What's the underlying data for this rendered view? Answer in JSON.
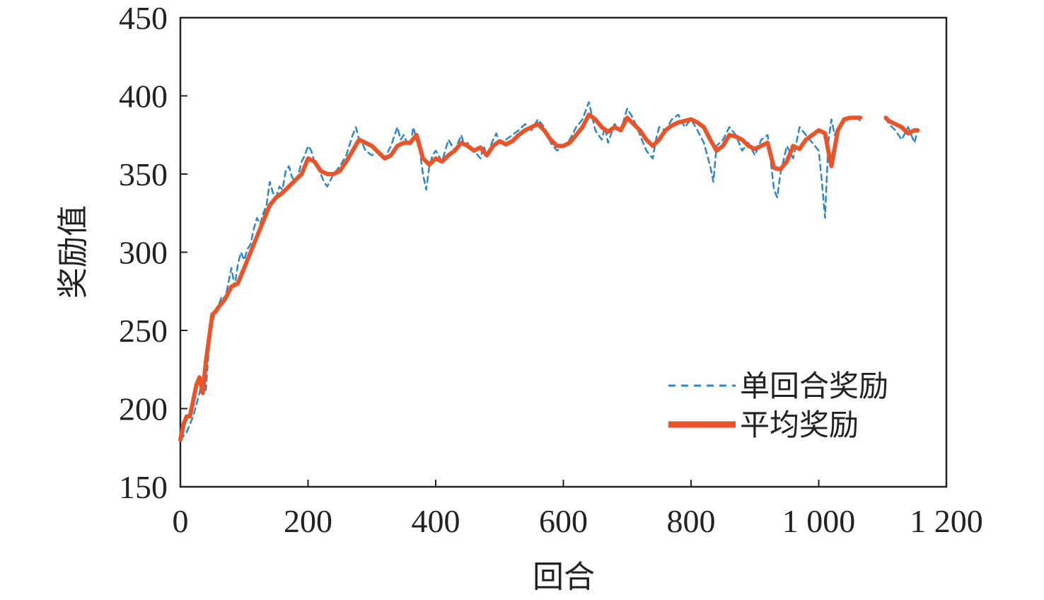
{
  "chart_data": {
    "type": "line",
    "title": "",
    "xlabel": "回合",
    "ylabel": "奖励值",
    "xlim": [
      0,
      1200
    ],
    "ylim": [
      150,
      450
    ],
    "xticks": [
      0,
      200,
      400,
      600,
      800,
      1000,
      1200
    ],
    "xtick_labels": [
      "0",
      "200",
      "400",
      "600",
      "800",
      "1 000",
      "1 200"
    ],
    "yticks": [
      150,
      200,
      250,
      300,
      350,
      400,
      450
    ],
    "ytick_labels": [
      "150",
      "200",
      "250",
      "300",
      "350",
      "400",
      "450"
    ],
    "grid": false,
    "legend_position": "bottom-right",
    "colors": {
      "single": "#2f86c8",
      "average": "#e8552a",
      "axis": "#222222"
    },
    "series": [
      {
        "name": "单回合奖励",
        "style": "dashed",
        "x": [
          0,
          10,
          20,
          30,
          35,
          40,
          45,
          50,
          55,
          60,
          65,
          70,
          75,
          80,
          85,
          90,
          95,
          100,
          105,
          110,
          115,
          120,
          125,
          130,
          135,
          140,
          145,
          150,
          155,
          160,
          165,
          170,
          175,
          180,
          185,
          190,
          195,
          200,
          205,
          210,
          215,
          220,
          225,
          230,
          240,
          250,
          260,
          270,
          275,
          280,
          285,
          290,
          300,
          310,
          320,
          330,
          340,
          345,
          350,
          355,
          360,
          365,
          370,
          375,
          380,
          385,
          390,
          395,
          400,
          410,
          420,
          430,
          440,
          445,
          450,
          460,
          470,
          475,
          480,
          490,
          495,
          500,
          510,
          520,
          530,
          540,
          550,
          560,
          570,
          580,
          590,
          600,
          610,
          620,
          630,
          640,
          650,
          660,
          665,
          670,
          680,
          690,
          700,
          710,
          720,
          730,
          740,
          745,
          750,
          760,
          770,
          780,
          790,
          800,
          810,
          820,
          830,
          835,
          840,
          850,
          860,
          870,
          880,
          890,
          900,
          910,
          920,
          930,
          935,
          940,
          950,
          960,
          970,
          980,
          990,
          1000,
          1005,
          1010,
          1015,
          1020,
          1025,
          1030,
          1040,
          1050,
          1060,
          1065,
          1105,
          1110,
          1120,
          1130,
          1140,
          1150,
          1155
        ],
        "y": [
          180,
          185,
          195,
          210,
          220,
          212,
          240,
          255,
          262,
          266,
          272,
          270,
          280,
          290,
          278,
          292,
          300,
          295,
          302,
          305,
          315,
          322,
          318,
          325,
          330,
          345,
          338,
          335,
          342,
          340,
          352,
          355,
          348,
          345,
          350,
          358,
          362,
          368,
          365,
          358,
          354,
          350,
          345,
          342,
          350,
          355,
          362,
          375,
          380,
          372,
          370,
          365,
          362,
          365,
          360,
          368,
          380,
          372,
          375,
          370,
          368,
          380,
          372,
          365,
          350,
          340,
          355,
          362,
          365,
          358,
          372,
          365,
          375,
          368,
          370,
          365,
          360,
          368,
          362,
          372,
          376,
          370,
          372,
          375,
          378,
          382,
          378,
          385,
          380,
          370,
          365,
          368,
          372,
          380,
          385,
          396,
          378,
          372,
          380,
          370,
          382,
          378,
          392,
          385,
          375,
          365,
          360,
          372,
          380,
          378,
          385,
          388,
          380,
          385,
          378,
          370,
          355,
          345,
          368,
          372,
          380,
          375,
          365,
          370,
          362,
          372,
          375,
          340,
          335,
          350,
          368,
          360,
          380,
          375,
          370,
          365,
          345,
          322,
          370,
          385,
          375,
          380,
          385,
          386,
          386,
          384,
          386,
          382,
          378,
          372,
          380,
          370,
          378
        ]
      },
      {
        "name": "平均奖励",
        "style": "solid",
        "x": [
          0,
          5,
          10,
          15,
          20,
          25,
          30,
          35,
          40,
          45,
          50,
          55,
          60,
          70,
          80,
          90,
          100,
          110,
          120,
          130,
          140,
          150,
          160,
          170,
          180,
          190,
          200,
          210,
          220,
          230,
          240,
          250,
          260,
          270,
          280,
          290,
          300,
          310,
          320,
          330,
          340,
          350,
          360,
          370,
          380,
          390,
          400,
          410,
          420,
          430,
          440,
          450,
          460,
          470,
          480,
          490,
          500,
          510,
          520,
          530,
          540,
          550,
          560,
          570,
          580,
          590,
          600,
          610,
          620,
          630,
          640,
          650,
          660,
          670,
          680,
          690,
          700,
          710,
          720,
          730,
          740,
          750,
          760,
          770,
          780,
          790,
          800,
          810,
          820,
          830,
          840,
          850,
          860,
          870,
          880,
          890,
          900,
          910,
          920,
          930,
          940,
          950,
          960,
          970,
          980,
          990,
          1000,
          1010,
          1015,
          1020,
          1030,
          1040,
          1050,
          1060,
          1065,
          1105,
          1110,
          1120,
          1130,
          1140,
          1150,
          1155
        ],
        "y": [
          180,
          190,
          195,
          195,
          205,
          215,
          220,
          210,
          230,
          245,
          260,
          262,
          265,
          270,
          278,
          280,
          290,
          300,
          310,
          320,
          330,
          335,
          338,
          342,
          346,
          350,
          360,
          358,
          352,
          350,
          350,
          352,
          358,
          365,
          372,
          370,
          368,
          364,
          360,
          362,
          368,
          370,
          370,
          375,
          360,
          356,
          360,
          358,
          362,
          365,
          370,
          368,
          365,
          367,
          362,
          368,
          371,
          369,
          371,
          375,
          378,
          380,
          382,
          378,
          372,
          368,
          368,
          370,
          375,
          380,
          388,
          385,
          380,
          377,
          380,
          378,
          386,
          382,
          378,
          372,
          368,
          372,
          378,
          381,
          383,
          384,
          385,
          383,
          380,
          372,
          365,
          368,
          375,
          374,
          372,
          368,
          366,
          368,
          370,
          354,
          353,
          358,
          368,
          366,
          372,
          375,
          378,
          376,
          365,
          355,
          378,
          385,
          386,
          386,
          386,
          386,
          384,
          382,
          380,
          376,
          378,
          378
        ]
      }
    ]
  }
}
